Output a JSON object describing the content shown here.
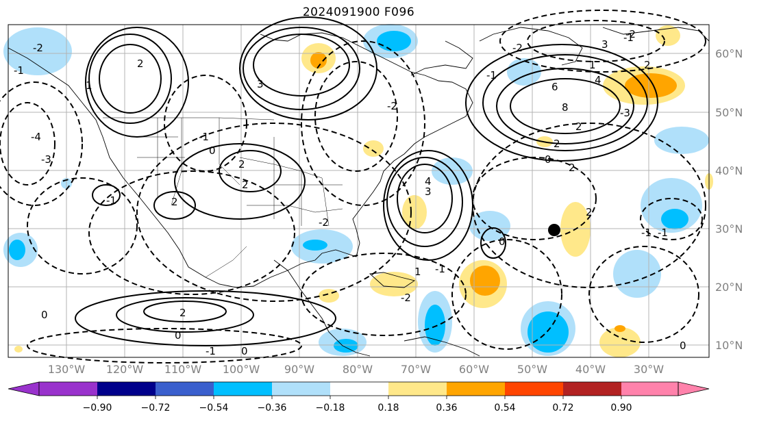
{
  "title": "2024091900 F096",
  "axes": {
    "lon_labels": [
      "130°W",
      "120°W",
      "110°W",
      "100°W",
      "90°W",
      "80°W",
      "70°W",
      "60°W",
      "50°W",
      "40°W",
      "30°W"
    ],
    "lat_labels": [
      "60°N",
      "50°N",
      "40°N",
      "30°N",
      "20°N",
      "10°N"
    ]
  },
  "colorbar": {
    "ticks": [
      "−0.90",
      "−0.72",
      "−0.54",
      "−0.36",
      "−0.18",
      "0.18",
      "0.36",
      "0.54",
      "0.72",
      "0.90"
    ],
    "colors": [
      "#9932cc",
      "#00008b",
      "#3a5fcd",
      "#00bfff",
      "#b0e0fa",
      "#ffffff",
      "#ffe88a",
      "#ffa500",
      "#ff4500",
      "#b22222",
      "#ff82ab"
    ]
  },
  "contour_labels": [
    "2",
    "1",
    "3",
    "-2",
    "-1",
    "0",
    "2",
    "-4",
    "-3",
    "-2",
    "1",
    "2",
    "3",
    "-1",
    "6",
    "4",
    "8",
    "-3",
    "2",
    "-2",
    "0",
    "2",
    "-1",
    "2",
    "3",
    "1",
    "2",
    "-2",
    "-1",
    "4",
    "-1",
    "2",
    "-2",
    "2",
    "-1",
    "0",
    "0",
    "-1",
    "0",
    "-1",
    "2",
    "0",
    "-1",
    "0",
    "-2"
  ],
  "marker": {
    "lon": "46°W",
    "lat": "30°N"
  }
}
